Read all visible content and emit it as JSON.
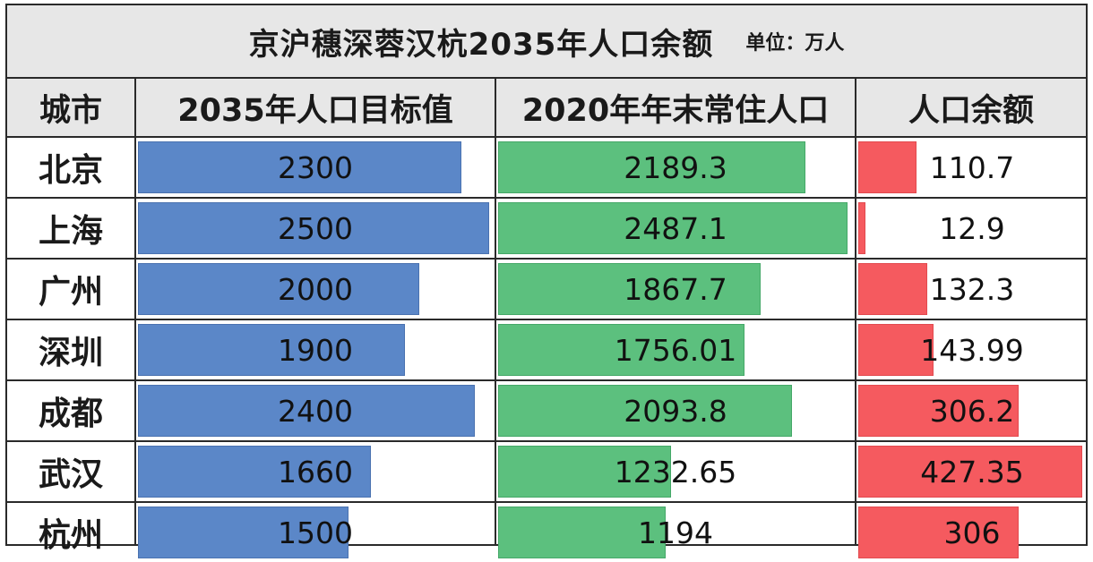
{
  "title": "京沪穗深蓉汉杭2035年人口余额",
  "unit": "单位：万人",
  "headers": {
    "city": "城市",
    "target": "2035年人口目标值",
    "current": "2020年年末常住人口",
    "balance": "人口余额"
  },
  "colors": {
    "target_bar": "#5b87c8",
    "current_bar": "#5cc07e",
    "balance_bar": "#f55a5f"
  },
  "rows": [
    {
      "city": "北京",
      "target": "2300",
      "current": "2189.3",
      "balance": "110.7"
    },
    {
      "city": "上海",
      "target": "2500",
      "current": "2487.1",
      "balance": "12.9"
    },
    {
      "city": "广州",
      "target": "2000",
      "current": "1867.7",
      "balance": "132.3"
    },
    {
      "city": "深圳",
      "target": "1900",
      "current": "1756.01",
      "balance": "143.99"
    },
    {
      "city": "成都",
      "target": "2400",
      "current": "2093.8",
      "balance": "306.2"
    },
    {
      "city": "武汉",
      "target": "1660",
      "current": "1232.65",
      "balance": "427.35"
    },
    {
      "city": "杭州",
      "target": "1500",
      "current": "1194",
      "balance": "306"
    }
  ]
}
